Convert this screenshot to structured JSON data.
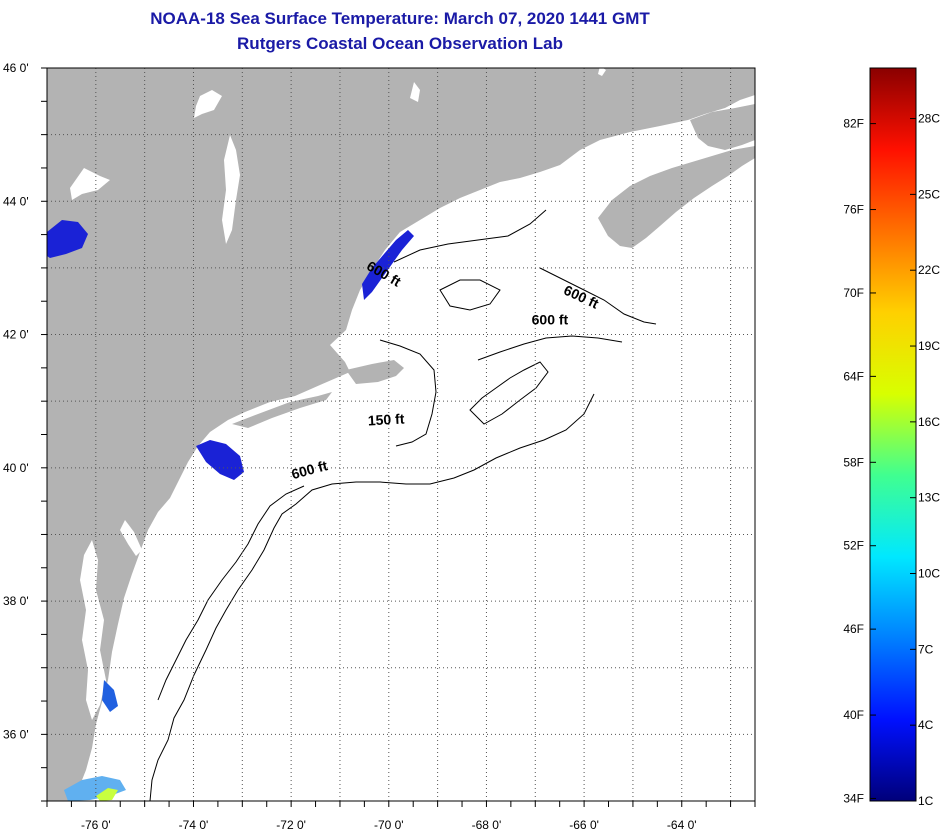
{
  "title": {
    "line1": "NOAA-18 Sea Surface Temperature:  March 07, 2020 1441 GMT",
    "line2": "Rutgers Coastal Ocean Observation Lab"
  },
  "map": {
    "lon_range": [
      -77,
      -62.5
    ],
    "lat_range": [
      35,
      46
    ],
    "lat_labels": [
      {
        "lat": 46,
        "text": "46 0'"
      },
      {
        "lat": 44,
        "text": "44 0'"
      },
      {
        "lat": 42,
        "text": "42 0'"
      },
      {
        "lat": 40,
        "text": "40 0'"
      },
      {
        "lat": 38,
        "text": "38 0'"
      },
      {
        "lat": 36,
        "text": "36 0'"
      }
    ],
    "lon_labels": [
      {
        "lon": -76,
        "text": "-76 0'"
      },
      {
        "lon": -74,
        "text": "-74 0'"
      },
      {
        "lon": -72,
        "text": "-72 0'"
      },
      {
        "lon": -70,
        "text": "-70 0'"
      },
      {
        "lon": -68,
        "text": "-68 0'"
      },
      {
        "lon": -66,
        "text": "-66 0'"
      },
      {
        "lon": -64,
        "text": "-64 0'"
      }
    ],
    "contour_labels": [
      {
        "text": "600 ft",
        "lon": -70.15,
        "lat": 42.85,
        "rotate": 30
      },
      {
        "text": "600 ft",
        "lon": -66.1,
        "lat": 42.5,
        "rotate": 25
      },
      {
        "text": "600 ft",
        "lon": -66.7,
        "lat": 42.15,
        "rotate": 0
      },
      {
        "text": "150 ft",
        "lon": -70.05,
        "lat": 40.65,
        "rotate": -3
      },
      {
        "text": "600 ft",
        "lon": -71.6,
        "lat": 39.9,
        "rotate": -15
      }
    ],
    "colors": {
      "land": "#b3b3b3",
      "ocean": "#ffffff",
      "cold_water": "#1a22d6",
      "grid": "#555555"
    }
  },
  "colorbar": {
    "min_c": 1,
    "max_c": 30,
    "fahrenheit_labels": [
      {
        "temp_c": 1.1,
        "text": "34F"
      },
      {
        "temp_c": 4.4,
        "text": "40F"
      },
      {
        "temp_c": 7.8,
        "text": "46F"
      },
      {
        "temp_c": 11.1,
        "text": "52F"
      },
      {
        "temp_c": 14.4,
        "text": "58F"
      },
      {
        "temp_c": 17.8,
        "text": "64F"
      },
      {
        "temp_c": 21.1,
        "text": "70F"
      },
      {
        "temp_c": 24.4,
        "text": "76F"
      },
      {
        "temp_c": 27.8,
        "text": "82F"
      }
    ],
    "celsius_labels": [
      {
        "temp_c": 1,
        "text": "1C"
      },
      {
        "temp_c": 4,
        "text": "4C"
      },
      {
        "temp_c": 7,
        "text": "7C"
      },
      {
        "temp_c": 10,
        "text": "10C"
      },
      {
        "temp_c": 13,
        "text": "13C"
      },
      {
        "temp_c": 16,
        "text": "16C"
      },
      {
        "temp_c": 19,
        "text": "19C"
      },
      {
        "temp_c": 22,
        "text": "22C"
      },
      {
        "temp_c": 25,
        "text": "25C"
      },
      {
        "temp_c": 28,
        "text": "28C"
      }
    ],
    "gradient_stops": [
      "#00007a",
      "#0010ff",
      "#0080ff",
      "#00e8ff",
      "#40ff90",
      "#d8ff00",
      "#ffd000",
      "#ff7000",
      "#ff1000",
      "#8a0000"
    ]
  }
}
